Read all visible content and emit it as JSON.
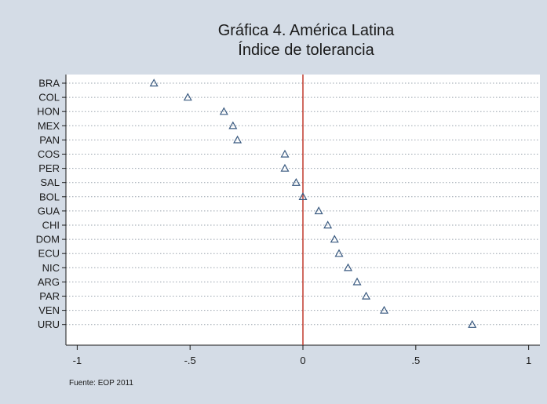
{
  "chart_data": {
    "type": "scatter",
    "title": "Gráfica 4. América Latina",
    "subtitle": "Índice de tolerancia",
    "xlabel": "",
    "ylabel": "",
    "xlim": [
      -1.05,
      1.05
    ],
    "x_ticks": [
      -1,
      -0.5,
      0,
      0.5,
      1
    ],
    "x_tick_labels": [
      "-1",
      "-.5",
      "0",
      ".5",
      "1"
    ],
    "reference_line_x": 0,
    "grid": "horizontal dotted",
    "marker": "triangle",
    "categories": [
      "BRA",
      "COL",
      "HON",
      "MEX",
      "PAN",
      "COS",
      "PER",
      "SAL",
      "BOL",
      "GUA",
      "CHI",
      "DOM",
      "ECU",
      "NIC",
      "ARG",
      "PAR",
      "VEN",
      "URU"
    ],
    "values": [
      -0.66,
      -0.51,
      -0.35,
      -0.31,
      -0.29,
      -0.08,
      -0.08,
      -0.03,
      0.0,
      0.07,
      0.11,
      0.14,
      0.16,
      0.2,
      0.24,
      0.28,
      0.36,
      0.75
    ],
    "source": "Fuente: EOP 2011",
    "colors": {
      "background": "#d4dce6",
      "plot_area": "#ffffff",
      "reference_line": "#c0392b",
      "marker": "#3a5a80",
      "grid": "#9aa4ae"
    }
  }
}
